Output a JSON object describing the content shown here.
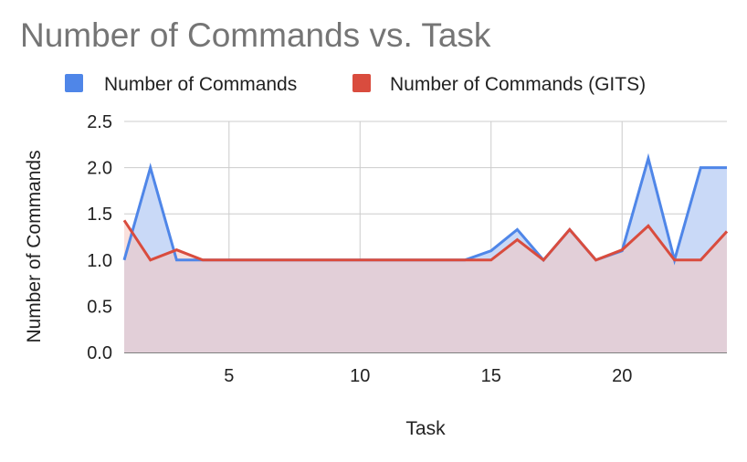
{
  "chart_data": {
    "type": "area",
    "title": "Number of Commands vs. Task",
    "xlabel": "Task",
    "ylabel": "Number of Commands",
    "x": [
      1,
      2,
      3,
      4,
      5,
      6,
      7,
      8,
      9,
      10,
      11,
      12,
      13,
      14,
      15,
      16,
      17,
      18,
      19,
      20,
      21,
      22,
      23,
      24
    ],
    "xlim": [
      1,
      24
    ],
    "ylim": [
      0,
      2.5
    ],
    "xticks": [
      5,
      10,
      15,
      20
    ],
    "yticks": [
      "0.0",
      "0.5",
      "1.0",
      "1.5",
      "2.0",
      "2.5"
    ],
    "grid": true,
    "legend_position": "top",
    "series": [
      {
        "name": "Number of Commands",
        "color": "#4f86e8",
        "fill": "#c9d9f7",
        "values": [
          1.0,
          2.0,
          1.0,
          1.0,
          1.0,
          1.0,
          1.0,
          1.0,
          1.0,
          1.0,
          1.0,
          1.0,
          1.0,
          1.0,
          1.1,
          1.33,
          1.0,
          1.33,
          1.0,
          1.1,
          2.1,
          1.0,
          2.0,
          2.0
        ]
      },
      {
        "name": "Number of Commands (GITS)",
        "color": "#d94c3e",
        "fill": "#f5c6c0",
        "values": [
          1.43,
          1.0,
          1.11,
          1.0,
          1.0,
          1.0,
          1.0,
          1.0,
          1.0,
          1.0,
          1.0,
          1.0,
          1.0,
          1.0,
          1.0,
          1.22,
          1.0,
          1.33,
          1.0,
          1.11,
          1.37,
          1.0,
          1.0,
          1.31
        ]
      }
    ]
  }
}
